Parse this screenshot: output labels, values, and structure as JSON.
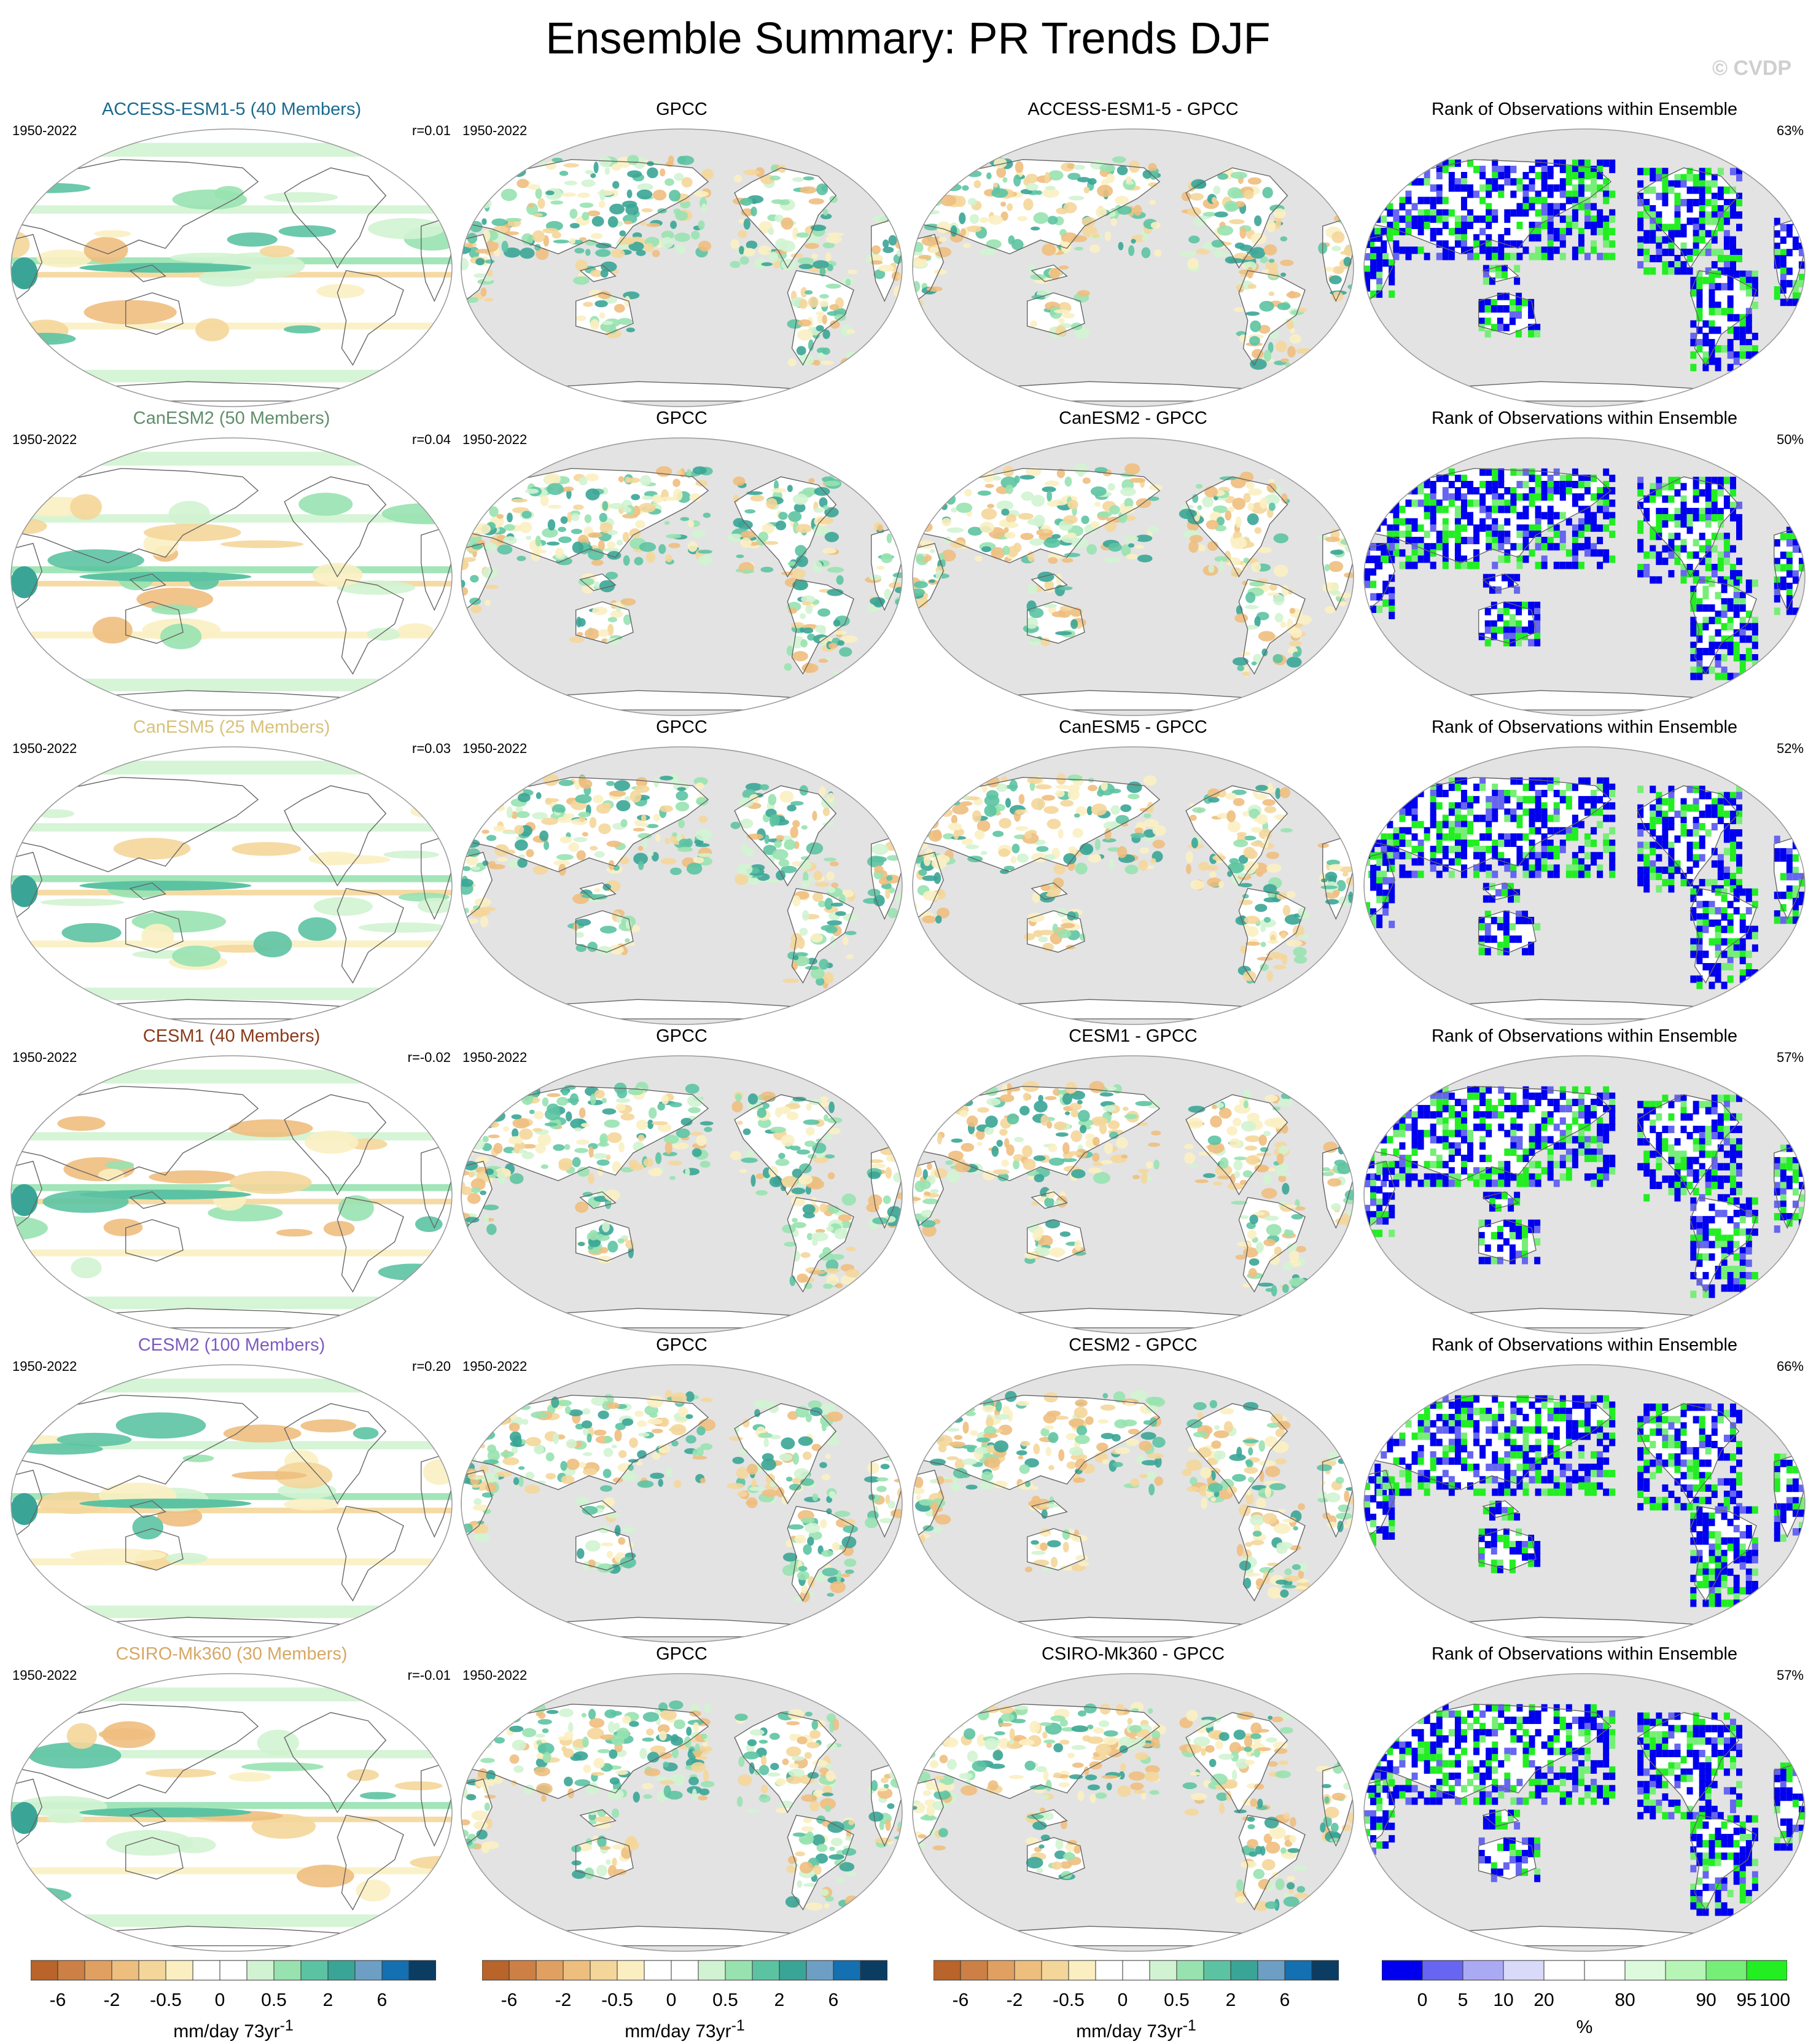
{
  "title": "Ensemble Summary: PR Trends DJF",
  "credit": "© CVDP",
  "rows": [
    {
      "model": "ACCESS-ESM1-5 (40 Members)",
      "model_color": "#1a6a8e",
      "years": "1950-2022",
      "r": "r=0.01",
      "obs_title": "GPCC",
      "obs_years": "1950-2022",
      "diff_title": "ACCESS-ESM1-5 - GPCC",
      "rank_title": "Rank of Observations within Ensemble",
      "rank_pct": "63%"
    },
    {
      "model": "CanESM2 (50 Members)",
      "model_color": "#5f8f6a",
      "years": "1950-2022",
      "r": "r=0.04",
      "obs_title": "GPCC",
      "obs_years": "1950-2022",
      "diff_title": "CanESM2 - GPCC",
      "rank_title": "Rank of Observations within Ensemble",
      "rank_pct": "50%"
    },
    {
      "model": "CanESM5 (25 Members)",
      "model_color": "#d8c27a",
      "years": "1950-2022",
      "r": "r=0.03",
      "obs_title": "GPCC",
      "obs_years": "1950-2022",
      "diff_title": "CanESM5 - GPCC",
      "rank_title": "Rank of Observations within Ensemble",
      "rank_pct": "52%"
    },
    {
      "model": "CESM1 (40 Members)",
      "model_color": "#8b3a1a",
      "years": "1950-2022",
      "r": "r=-0.02",
      "obs_title": "GPCC",
      "obs_years": "1950-2022",
      "diff_title": "CESM1 - GPCC",
      "rank_title": "Rank of Observations within Ensemble",
      "rank_pct": "57%"
    },
    {
      "model": "CESM2 (100 Members)",
      "model_color": "#7d5bbf",
      "years": "1950-2022",
      "r": "r=0.20",
      "obs_title": "GPCC",
      "obs_years": "1950-2022",
      "diff_title": "CESM2 - GPCC",
      "rank_title": "Rank of Observations within Ensemble",
      "rank_pct": "66%"
    },
    {
      "model": "CSIRO-Mk360 (30 Members)",
      "model_color": "#d6a866",
      "years": "1950-2022",
      "r": "r=-0.01",
      "obs_title": "GPCC",
      "obs_years": "1950-2022",
      "diff_title": "CSIRO-Mk360 - GPCC",
      "rank_title": "Rank of Observations within Ensemble",
      "rank_pct": "57%"
    }
  ],
  "colorbars": {
    "trend": {
      "colors": [
        "#b8642a",
        "#cc8045",
        "#e0a062",
        "#eebe7e",
        "#f4d69a",
        "#fbefc2",
        "#ffffff",
        "#ffffff",
        "#d2f3d2",
        "#98e2b0",
        "#5cc3a2",
        "#3aa596",
        "#6d9fc4",
        "#1470b0",
        "#0b3d63"
      ],
      "tick_labels": [
        "-6",
        "-2",
        "-0.5",
        "0",
        "0.5",
        "2",
        "6"
      ],
      "units": "mm/day 73yr",
      "units_sup": "-1"
    },
    "rank": {
      "colors": [
        "#0000ee",
        "#6666f0",
        "#aaaaf4",
        "#d9d9fa",
        "#ffffff",
        "#ffffff",
        "#ddfadd",
        "#b6f5b6",
        "#77ee77",
        "#22ee22"
      ],
      "tick_labels": [
        "0",
        "5",
        "10",
        "20",
        "80",
        "90",
        "95",
        "100"
      ],
      "units": "%"
    }
  }
}
